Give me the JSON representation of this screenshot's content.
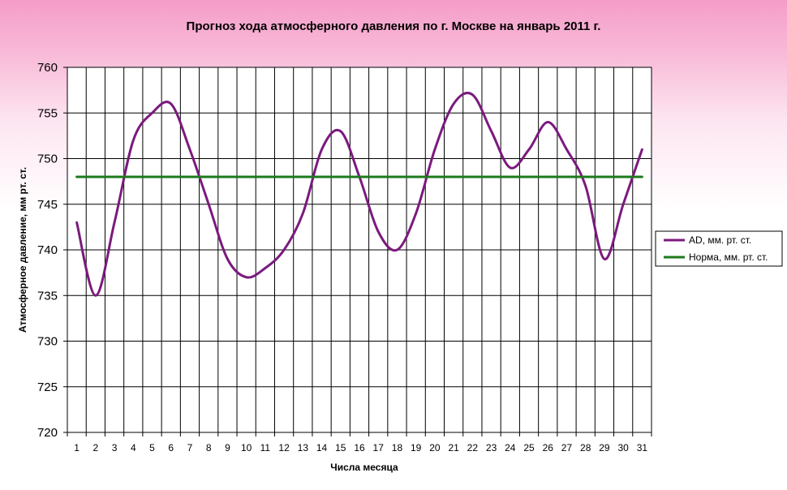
{
  "chart_data": {
    "type": "line",
    "title": "Прогноз хода атмосферного давления по г. Москве на январь 2011 г.",
    "xlabel": "Числа месяца",
    "ylabel": "Атмосферное давление, мм рт. ст.",
    "categories": [
      "1",
      "2",
      "3",
      "4",
      "5",
      "6",
      "7",
      "8",
      "9",
      "10",
      "11",
      "12",
      "13",
      "14",
      "15",
      "16",
      "17",
      "18",
      "19",
      "20",
      "21",
      "22",
      "23",
      "24",
      "25",
      "26",
      "27",
      "28",
      "29",
      "30",
      "31"
    ],
    "yticks": [
      "720",
      "725",
      "730",
      "735",
      "740",
      "745",
      "750",
      "755",
      "760"
    ],
    "ylim": [
      720,
      760
    ],
    "grid": true,
    "legend_position": "right",
    "series": [
      {
        "name": "AD, мм. рт. ст.",
        "color": "#7b1a7e",
        "values": [
          743,
          735,
          743,
          752,
          755,
          756,
          751,
          745,
          739,
          737,
          738,
          740,
          744,
          751,
          753,
          748,
          742,
          740,
          744,
          751,
          756,
          757,
          753,
          749,
          751,
          754,
          751,
          747,
          739,
          745,
          751
        ]
      },
      {
        "name": "Норма, мм. рт. ст.",
        "color": "#1c7a1c",
        "values": [
          748,
          748,
          748,
          748,
          748,
          748,
          748,
          748,
          748,
          748,
          748,
          748,
          748,
          748,
          748,
          748,
          748,
          748,
          748,
          748,
          748,
          748,
          748,
          748,
          748,
          748,
          748,
          748,
          748,
          748,
          748
        ]
      }
    ]
  }
}
